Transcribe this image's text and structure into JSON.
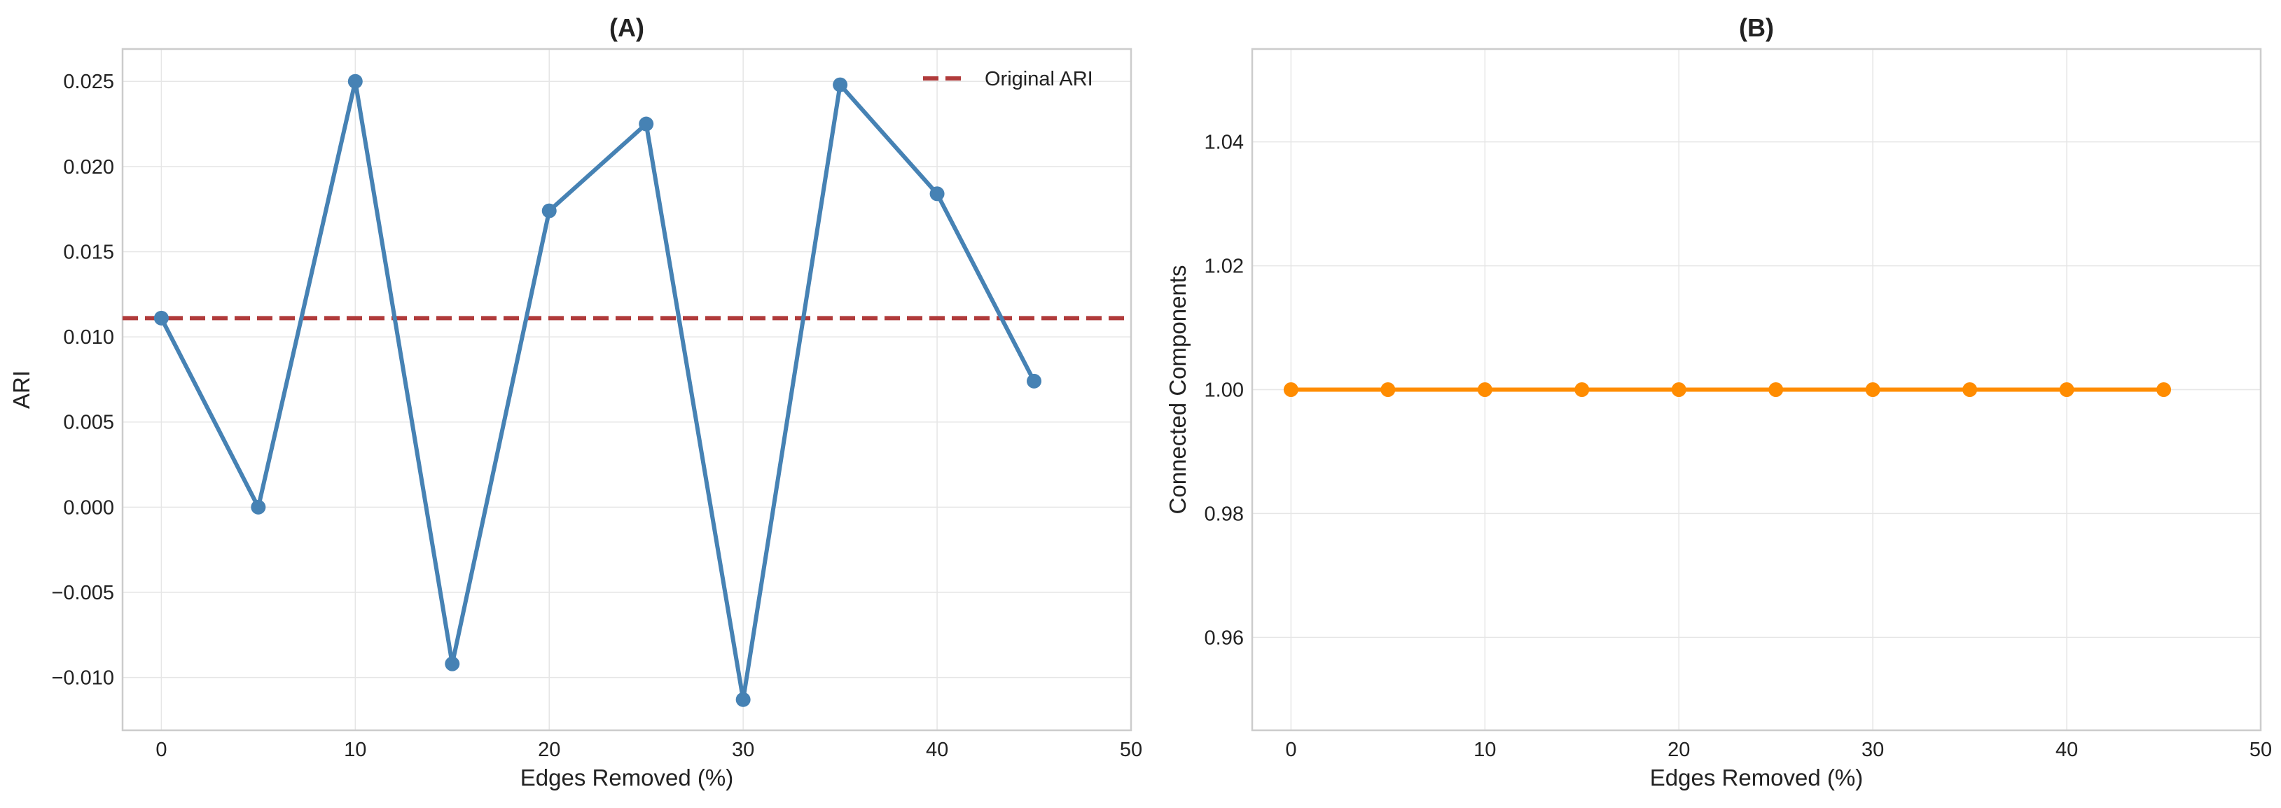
{
  "chart_data": [
    {
      "type": "line",
      "title": "(A)",
      "xlabel": "Edges Removed (%)",
      "ylabel": "ARI",
      "xlim": [
        -2,
        50
      ],
      "ylim": [
        -0.0131,
        0.0269
      ],
      "xticks": [
        0,
        10,
        20,
        30,
        40,
        50
      ],
      "xtick_labels": [
        "0",
        "10",
        "20",
        "30",
        "40",
        "50"
      ],
      "yticks": [
        -0.01,
        -0.005,
        0.0,
        0.005,
        0.01,
        0.015,
        0.02,
        0.025
      ],
      "ytick_labels": [
        "−0.010",
        "−0.005",
        "0.000",
        "0.005",
        "0.010",
        "0.015",
        "0.020",
        "0.025"
      ],
      "grid": true,
      "legend_position": "top-right",
      "series": [
        {
          "color": "#4682b4",
          "marker": "circle",
          "x": [
            0,
            5,
            10,
            15,
            20,
            25,
            30,
            35,
            40,
            45
          ],
          "y": [
            0.0111,
            0.0,
            0.025,
            -0.0092,
            0.0174,
            0.0225,
            -0.0113,
            0.0248,
            0.0184,
            0.0074
          ]
        }
      ],
      "reference_lines": [
        {
          "name": "Original ARI",
          "y": 0.0111,
          "color": "#b03a3a",
          "style": "dashed"
        }
      ]
    },
    {
      "type": "line",
      "title": "(B)",
      "xlabel": "Edges Removed (%)",
      "ylabel": "Connected Components",
      "xlim": [
        -2,
        50
      ],
      "ylim": [
        0.945,
        1.055
      ],
      "xticks": [
        0,
        10,
        20,
        30,
        40,
        50
      ],
      "xtick_labels": [
        "0",
        "10",
        "20",
        "30",
        "40",
        "50"
      ],
      "yticks": [
        0.96,
        0.98,
        1.0,
        1.02,
        1.04
      ],
      "ytick_labels": [
        "0.96",
        "0.98",
        "1.00",
        "1.02",
        "1.04"
      ],
      "grid": true,
      "series": [
        {
          "color": "#ff8c00",
          "marker": "circle",
          "x": [
            0,
            5,
            10,
            15,
            20,
            25,
            30,
            35,
            40,
            45
          ],
          "y": [
            1,
            1,
            1,
            1,
            1,
            1,
            1,
            1,
            1,
            1
          ]
        }
      ],
      "reference_lines": []
    }
  ]
}
